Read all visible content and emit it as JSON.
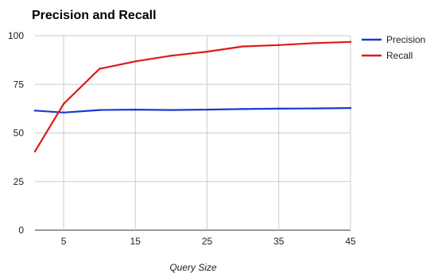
{
  "chart_data": {
    "type": "line",
    "title": "Precision and Recall",
    "xlabel": "Query Size",
    "ylabel": "",
    "x": [
      1,
      5,
      10,
      15,
      20,
      25,
      30,
      35,
      40,
      45
    ],
    "xlim": [
      1,
      45
    ],
    "ylim": [
      0,
      100
    ],
    "xticks": [
      5,
      15,
      25,
      35,
      45
    ],
    "yticks": [
      0,
      25,
      50,
      75,
      100
    ],
    "grid": true,
    "legend_position": "right",
    "series": [
      {
        "name": "Precision",
        "color": "#1a3ad1",
        "values": [
          61.5,
          60.5,
          61.8,
          62.0,
          61.8,
          62.0,
          62.3,
          62.5,
          62.6,
          62.8
        ]
      },
      {
        "name": "Recall",
        "color": "#dd1a1a",
        "values": [
          40.5,
          65.0,
          83.0,
          86.8,
          89.7,
          91.8,
          94.5,
          95.2,
          96.2,
          96.8
        ]
      }
    ]
  }
}
